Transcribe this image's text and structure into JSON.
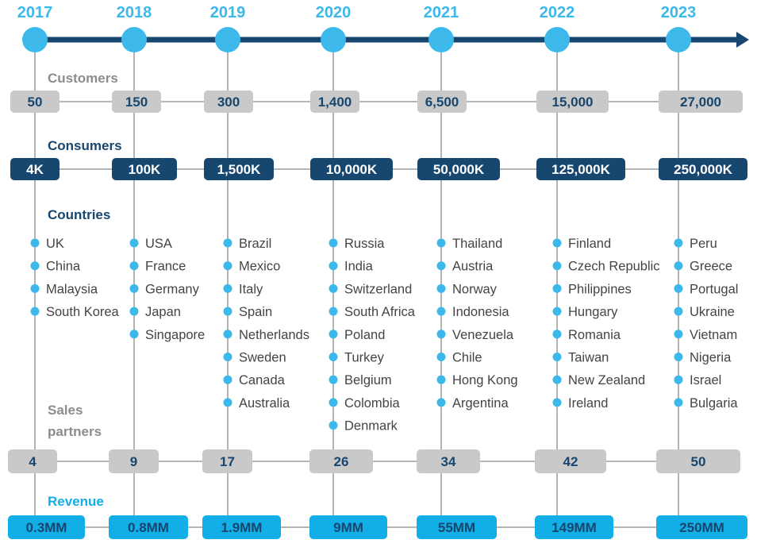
{
  "years": [
    "2017",
    "2018",
    "2019",
    "2020",
    "2021",
    "2022",
    "2023"
  ],
  "colors": {
    "timeline": "#17466e",
    "node": "#3db8ea",
    "gray_box": "#c9c9c9",
    "gray_text": "#17466e",
    "navy_box": "#17466e",
    "cyan_box": "#12aee8",
    "section_gray": "#8c8c8c",
    "section_navy": "#17466e",
    "section_cyan": "#12aee8",
    "country_bullet": "#3db8ea"
  },
  "sections": {
    "customers": "Customers",
    "consumers": "Consumers",
    "countries": "Countries",
    "sales_partners": [
      "Sales",
      "partners"
    ],
    "revenue": "Revenue"
  },
  "customers": [
    "50",
    "150",
    "300",
    "1,400",
    "6,500",
    "15,000",
    "27,000"
  ],
  "consumers": [
    "4K",
    "100K",
    "1,500K",
    "10,000K",
    "50,000K",
    "125,000K",
    "250,000K"
  ],
  "countries": [
    [
      "UK",
      "China",
      "Malaysia",
      "South Korea"
    ],
    [
      "USA",
      "France",
      "Germany",
      "Japan",
      "Singapore"
    ],
    [
      "Brazil",
      "Mexico",
      "Italy",
      "Spain",
      "Netherlands",
      "Sweden",
      "Canada",
      "Australia"
    ],
    [
      "Russia",
      "India",
      "Switzerland",
      "South Africa",
      "Poland",
      "Turkey",
      "Belgium",
      "Colombia",
      "Denmark"
    ],
    [
      "Thailand",
      "Austria",
      "Norway",
      "Indonesia",
      "Venezuela",
      "Chile",
      "Hong Kong",
      "Argentina"
    ],
    [
      "Finland",
      "Czech Republic",
      "Philippines",
      "Hungary",
      "Romania",
      "Taiwan",
      "New Zealand",
      "Ireland"
    ],
    [
      "Peru",
      "Greece",
      "Portugal",
      "Ukraine",
      "Vietnam",
      "Nigeria",
      "Israel",
      "Bulgaria"
    ]
  ],
  "sales_partners": [
    "4",
    "9",
    "17",
    "26",
    "34",
    "42",
    "50"
  ],
  "revenue": [
    "0.3MM",
    "0.8MM",
    "1.9MM",
    "9MM",
    "55MM",
    "149MM",
    "250MM"
  ]
}
